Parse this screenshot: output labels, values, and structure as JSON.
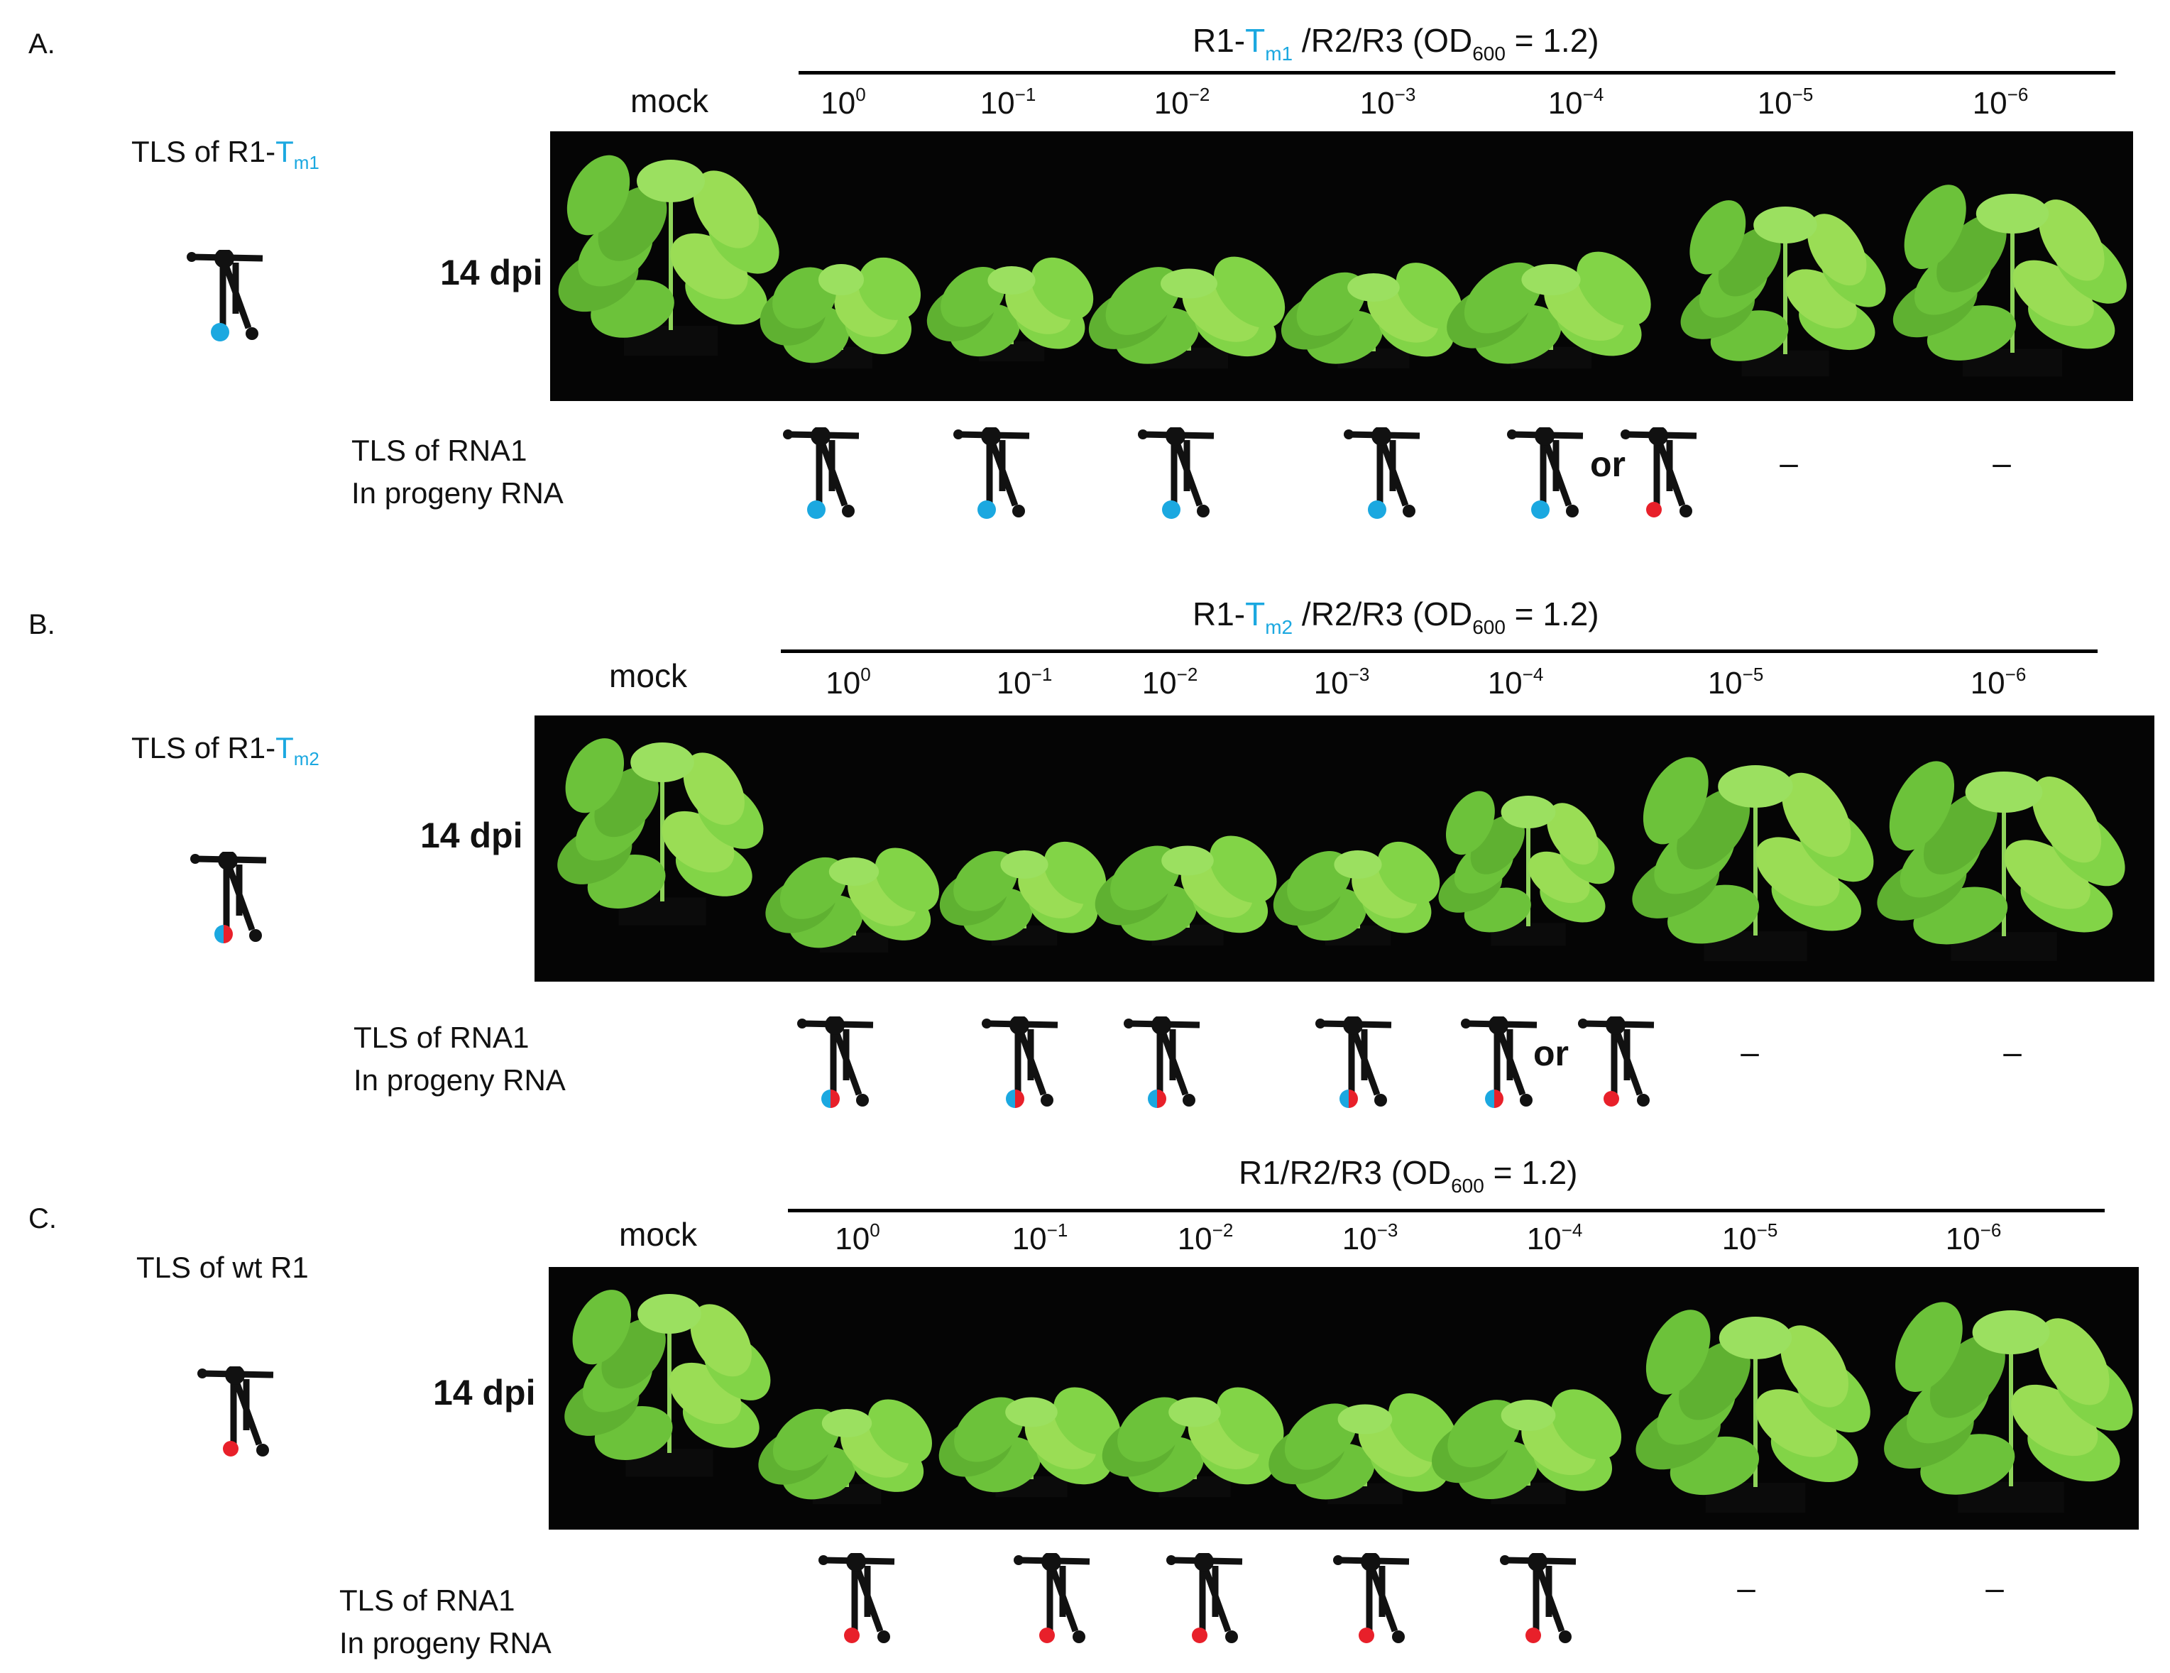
{
  "colors": {
    "blue": "#1ba8e0",
    "red": "#e8202a",
    "black": "#111111",
    "plant": "#7ccf3a"
  },
  "panels": [
    {
      "letter": "A.",
      "title_prefix": "TLS  of R1-",
      "title_tm": "T",
      "title_sub": "m1",
      "header_prefix": "R1-",
      "header_tm": "T",
      "header_sub": "m1",
      "header_suffix": " /R2/R3    (OD",
      "header_od_sub": "600",
      "header_end": " = 1.2)",
      "mock": "mock",
      "dpi": "14 dpi",
      "dilutions": [
        "10",
        "10",
        "10",
        "10",
        "10",
        "10",
        "10"
      ],
      "exponents": [
        "0",
        "−1",
        "−2",
        "−3",
        "−4",
        "−5",
        "−6"
      ],
      "progeny_label": [
        "TLS  of RNA1",
        "In progeny RNA"
      ],
      "or_label": "or",
      "dash": "–",
      "icon": "tls-structure-blue-icon",
      "progeny_icons": [
        "blue",
        "blue",
        "blue",
        "blue",
        "blue"
      ],
      "alt_icon": "red"
    },
    {
      "letter": "B.",
      "title_prefix": "TLS  of R1-",
      "title_tm": "T",
      "title_sub": "m2",
      "header_prefix": "R1-",
      "header_tm": "T",
      "header_sub": "m2",
      "header_suffix": " /R2/R3    (OD",
      "header_od_sub": "600",
      "header_end": " = 1.2)",
      "mock": "mock",
      "dpi": "14 dpi",
      "dilutions": [
        "10",
        "10",
        "10",
        "10",
        "10",
        "10",
        "10"
      ],
      "exponents": [
        "0",
        "−1",
        "−2",
        "−3",
        "−4",
        "−5",
        "−6"
      ],
      "progeny_label": [
        "TLS  of RNA1",
        "In progeny RNA"
      ],
      "or_label": "or",
      "dash": "–",
      "icon": "tls-structure-blue-red-icon",
      "progeny_icons": [
        "half",
        "half",
        "half",
        "half",
        "half"
      ],
      "alt_icon": "red"
    },
    {
      "letter": "C.",
      "title_prefix": "TLS  of wt R1",
      "header_prefix": "R1/R2/R3    (OD",
      "header_od_sub": "600",
      "header_end": " = 1.2)",
      "mock": "mock",
      "dpi": "14 dpi",
      "dilutions": [
        "10",
        "10",
        "10",
        "10",
        "10",
        "10",
        "10"
      ],
      "exponents": [
        "0",
        "−1",
        "−2",
        "−3",
        "−4",
        "−5",
        "−6"
      ],
      "progeny_label": [
        "TLS  of RNA1",
        "In progeny RNA"
      ],
      "dash": "–",
      "icon": "tls-structure-red-icon",
      "progeny_icons": [
        "red",
        "red",
        "red",
        "red",
        "red"
      ]
    }
  ]
}
